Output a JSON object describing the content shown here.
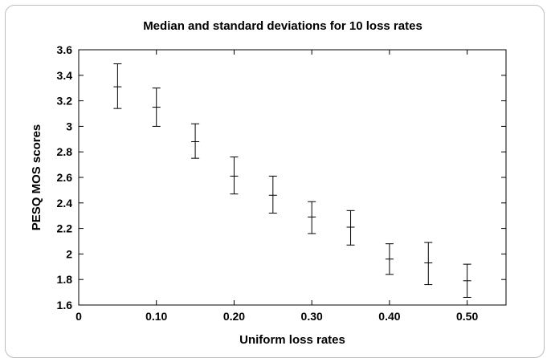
{
  "chart_data": {
    "type": "scatter",
    "title": "Median and standard deviations for 10 loss rates",
    "xlabel": "Uniform loss rates",
    "ylabel": "PESQ MOS scores",
    "xlim": [
      0,
      0.55
    ],
    "ylim": [
      1.6,
      3.6
    ],
    "x_ticks": [
      {
        "value": 0,
        "label": "0"
      },
      {
        "value": 0.1,
        "label": "0.10"
      },
      {
        "value": 0.2,
        "label": "0.20"
      },
      {
        "value": 0.3,
        "label": "0.30"
      },
      {
        "value": 0.4,
        "label": "0.40"
      },
      {
        "value": 0.5,
        "label": "0.50"
      }
    ],
    "y_ticks": [
      {
        "value": 1.6,
        "label": "1.6"
      },
      {
        "value": 1.8,
        "label": "1.8"
      },
      {
        "value": 2.0,
        "label": "2"
      },
      {
        "value": 2.2,
        "label": "2.2"
      },
      {
        "value": 2.4,
        "label": "2.4"
      },
      {
        "value": 2.6,
        "label": "2.6"
      },
      {
        "value": 2.8,
        "label": "2.8"
      },
      {
        "value": 3.0,
        "label": "3"
      },
      {
        "value": 3.2,
        "label": "3.2"
      },
      {
        "value": 3.4,
        "label": "3.4"
      },
      {
        "value": 3.6,
        "label": "3.6"
      }
    ],
    "grid": false,
    "series": [
      {
        "points": [
          {
            "x": 0.05,
            "median": 3.31,
            "low": 3.14,
            "high": 3.49
          },
          {
            "x": 0.1,
            "median": 3.15,
            "low": 3.0,
            "high": 3.3
          },
          {
            "x": 0.15,
            "median": 2.88,
            "low": 2.75,
            "high": 3.02
          },
          {
            "x": 0.2,
            "median": 2.61,
            "low": 2.47,
            "high": 2.76
          },
          {
            "x": 0.25,
            "median": 2.46,
            "low": 2.32,
            "high": 2.61
          },
          {
            "x": 0.3,
            "median": 2.29,
            "low": 2.16,
            "high": 2.41
          },
          {
            "x": 0.35,
            "median": 2.21,
            "low": 2.07,
            "high": 2.34
          },
          {
            "x": 0.4,
            "median": 1.96,
            "low": 1.84,
            "high": 2.08
          },
          {
            "x": 0.45,
            "median": 1.93,
            "low": 1.76,
            "high": 2.09
          },
          {
            "x": 0.5,
            "median": 1.79,
            "low": 1.66,
            "high": 1.92
          }
        ]
      }
    ]
  },
  "colors": {
    "axis": "#000000",
    "frame": "#bdbdbd",
    "marks": "#000000"
  }
}
